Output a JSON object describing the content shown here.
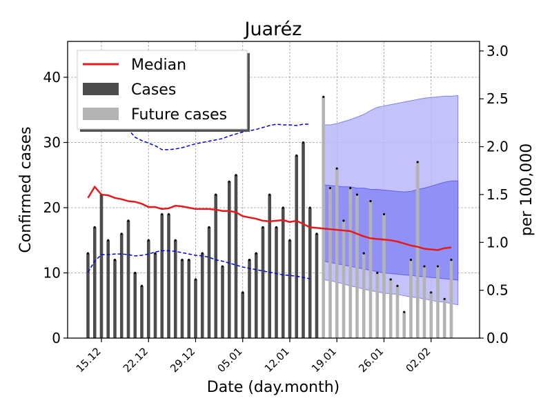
{
  "chart_data": {
    "type": "bar",
    "title": "Juaréz",
    "xlabel": "Date (day.month)",
    "ylabel": "Confirmed cases",
    "ylabel_right": "per 100,000",
    "ylim": [
      0,
      45.5
    ],
    "ylim_right": [
      0,
      3.1
    ],
    "yticks": [
      0,
      10,
      20,
      30,
      40
    ],
    "yticks_right": [
      "0.0",
      "0.5",
      "1.0",
      "1.5",
      "2.0",
      "2.5",
      "3.0"
    ],
    "xtick_labels": [
      "15.12",
      "22.12",
      "29.12",
      "05.01",
      "12.01",
      "19.01",
      "26.01",
      "02.02"
    ],
    "grid": true,
    "legend_position": "top-left",
    "legend": {
      "median": "Median",
      "cases": "Cases",
      "future": "Future cases"
    },
    "colors": {
      "cases": "#4d4d4d",
      "future": "#b3b3b3",
      "median": "#e31a1c",
      "ci_line": "#0000dd",
      "band_outer": "#b8b8f8",
      "band_inner": "#7f7ff5"
    },
    "cases": [
      13,
      17,
      22,
      15,
      12,
      16,
      18,
      10,
      8,
      15,
      13,
      19,
      19,
      15,
      12,
      12,
      9,
      13,
      17,
      22,
      11,
      24,
      25,
      7,
      12,
      13,
      17,
      22,
      17,
      20,
      15,
      28,
      30,
      20,
      16
    ],
    "future_cases": [
      37,
      23,
      26,
      18,
      23,
      22,
      13,
      21,
      10,
      19,
      9,
      8,
      4,
      12,
      27,
      11,
      7,
      11,
      6,
      12
    ],
    "median": [
      21.5,
      23.2,
      22.0,
      21.9,
      21.5,
      21.3,
      21.0,
      20.9,
      20.6,
      20.1,
      20.1,
      19.8,
      19.9,
      20.3,
      20.2,
      20.0,
      19.8,
      19.8,
      19.8,
      19.7,
      19.5,
      19.5,
      19.3,
      18.7,
      18.5,
      18.3,
      18.0,
      17.9,
      18.0,
      18.1,
      17.8,
      18.0,
      17.5,
      17.0,
      16.9,
      16.8,
      16.7,
      16.6,
      16.5,
      16.4,
      16.0,
      15.6,
      15.3,
      15.2,
      15.1,
      15.0,
      14.8,
      14.5,
      14.2,
      14.0,
      13.7,
      13.6,
      13.5,
      13.8,
      13.9
    ],
    "ci_upper": [
      33.0,
      33.5,
      33.8,
      33.7,
      33.5,
      33.2,
      32.0,
      30.8,
      30.3,
      29.9,
      29.5,
      28.9,
      28.9,
      29.0,
      29.2,
      29.5,
      29.8,
      30.0,
      30.2,
      30.4,
      30.6,
      31.0,
      31.3,
      31.6,
      31.8,
      32.0,
      32.3,
      32.6,
      32.8,
      32.7,
      32.7,
      32.6,
      32.8,
      32.8
    ],
    "ci_lower": [
      10.1,
      11.8,
      12.8,
      12.8,
      12.9,
      12.9,
      12.8,
      12.6,
      12.7,
      12.9,
      13.2,
      13.4,
      13.4,
      13.3,
      13.1,
      12.9,
      12.7,
      12.6,
      12.4,
      12.0,
      11.8,
      11.5,
      11.2,
      10.9,
      10.7,
      10.5,
      10.3,
      10.1,
      9.9,
      9.7,
      9.6,
      9.5,
      9.3,
      9.1
    ],
    "band_outer_upper": [
      32.7,
      32.7,
      32.9,
      33.2,
      33.5,
      33.9,
      34.3,
      34.9,
      35.4,
      35.6,
      35.8,
      36.0,
      36.2,
      36.4,
      36.6,
      36.8,
      36.9,
      37.0,
      37.1,
      37.1,
      37.2
    ],
    "band_outer_lower": [
      9.0,
      8.8,
      8.6,
      8.3,
      8.0,
      7.8,
      7.5,
      7.3,
      7.1,
      6.9,
      6.8,
      6.7,
      6.5,
      6.3,
      6.2,
      6.0,
      5.8,
      5.6,
      5.5,
      5.3,
      5.1
    ],
    "band_inner_upper": [
      23.5,
      23.4,
      23.3,
      23.2,
      23.2,
      23.0,
      23.0,
      22.8,
      22.8,
      22.7,
      22.6,
      22.5,
      22.4,
      22.5,
      22.8,
      23.0,
      23.3,
      23.6,
      23.9,
      24.1,
      24.1
    ],
    "band_inner_lower": [
      11.8,
      11.6,
      11.4,
      11.2,
      11.0,
      10.8,
      10.6,
      10.4,
      10.2,
      10.0,
      9.9,
      9.8,
      9.7,
      9.6,
      9.5,
      9.4,
      9.3,
      9.2,
      9.1,
      9.0,
      8.9
    ]
  }
}
